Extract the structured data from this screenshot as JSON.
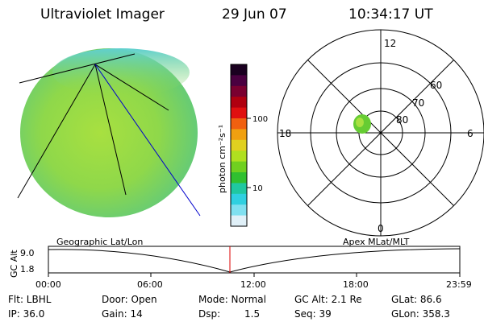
{
  "header": {
    "title": "Ultraviolet Imager",
    "date": "29 Jun 07",
    "time": "10:34:17 UT"
  },
  "colorbar": {
    "unit_label": "photon cm⁻²s⁻¹",
    "tick_labels": [
      "100",
      "10"
    ],
    "colors": [
      "#1a0020",
      "#4a0040",
      "#7a0030",
      "#b00010",
      "#e01010",
      "#f06010",
      "#f0a010",
      "#e0d020",
      "#b0e020",
      "#70d020",
      "#30c030",
      "#20c8a0",
      "#30d0e0",
      "#80e0f0",
      "#e0f0f8"
    ]
  },
  "globe_view": {
    "fill_color": "#8fd84a"
  },
  "polar_plot": {
    "mlt_labels": [
      "12",
      "18",
      "6",
      "0"
    ],
    "lat_labels": [
      "60",
      "70",
      "80"
    ],
    "blob_color": "#66cc33"
  },
  "timeline": {
    "y_axis_title": "GC Alt",
    "y_ticks": [
      "9.0",
      "1.8"
    ],
    "left_label": "Geographic Lat/Lon",
    "right_label": "Apex MLat/MLT",
    "time_ticks": [
      "00:00",
      "06:00",
      "12:00",
      "18:00",
      "23:59"
    ],
    "cursor_color": "#dd0000"
  },
  "info": {
    "flt": "Flt: LBHL",
    "ip": "IP: 36.0",
    "door": "Door: Open",
    "gain": "Gain: 14",
    "mode": "Mode: Normal",
    "dsp_label": "Dsp:",
    "dsp_value": "1.5",
    "gc_alt": "GC Alt: 2.1 Re",
    "seq": "Seq: 39",
    "glat": "GLat:  86.6",
    "glon": "GLon: 358.3"
  }
}
